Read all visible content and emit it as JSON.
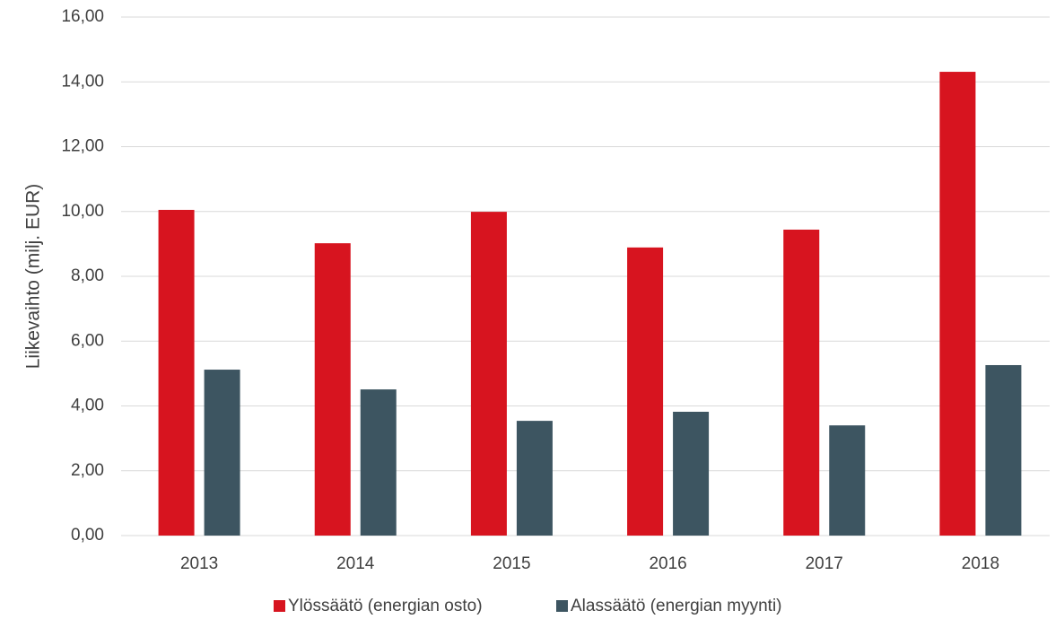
{
  "chart_data": {
    "type": "bar",
    "y_label": "Liikevaihto (milj. EUR)",
    "categories": [
      "2013",
      "2014",
      "2015",
      "2016",
      "2017",
      "2018"
    ],
    "series": [
      {
        "name": "Ylössäätö (energian osto)",
        "color": "#d7141f",
        "values": [
          10.05,
          9.02,
          9.99,
          8.89,
          9.44,
          14.31
        ]
      },
      {
        "name": "Alassäätö (energian myynti)",
        "color": "#3d5561",
        "values": [
          5.12,
          4.51,
          3.54,
          3.82,
          3.4,
          5.26
        ]
      }
    ],
    "ylim": [
      0,
      16
    ],
    "yticks": [
      {
        "value": 0,
        "label": "0,00"
      },
      {
        "value": 2,
        "label": "2,00"
      },
      {
        "value": 4,
        "label": "4,00"
      },
      {
        "value": 6,
        "label": "6,00"
      },
      {
        "value": 8,
        "label": "8,00"
      },
      {
        "value": 10,
        "label": "10,00"
      },
      {
        "value": 12,
        "label": "12,00"
      },
      {
        "value": 14,
        "label": "14,00"
      },
      {
        "value": 16,
        "label": "16,00"
      }
    ],
    "grid": true,
    "legend": "bottom"
  }
}
